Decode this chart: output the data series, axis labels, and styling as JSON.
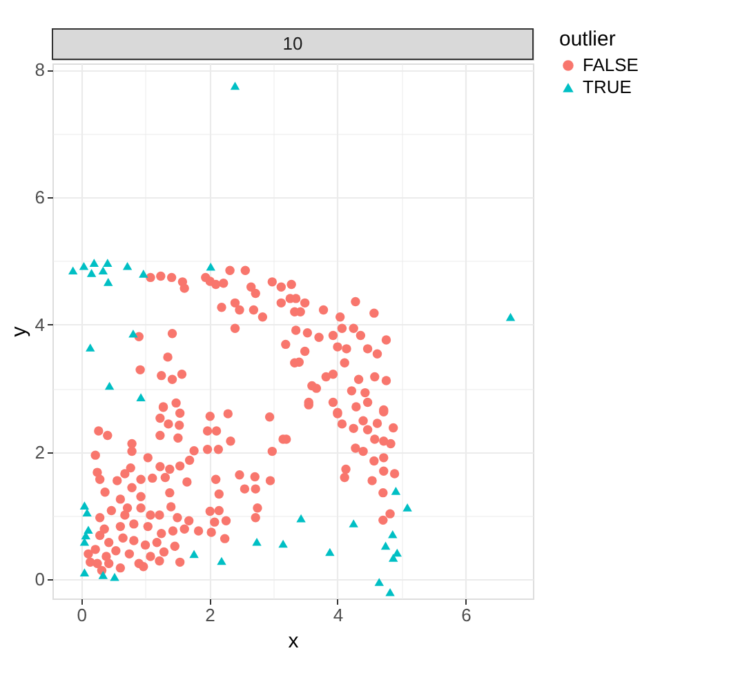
{
  "chart_data": {
    "type": "scatter",
    "title": "10",
    "xlabel": "x",
    "ylabel": "y",
    "legend_title": "outlier",
    "legend": "right",
    "grid": true,
    "xlim": [
      -0.45,
      7.05
    ],
    "ylim": [
      -0.3,
      8.1
    ],
    "xticks": [
      0,
      2,
      4,
      6
    ],
    "yticks": [
      0,
      2,
      4,
      6,
      8
    ],
    "series": [
      {
        "name": "FALSE",
        "color": "#f8766d",
        "marker": "circle",
        "x": [
          1.08,
          1.24,
          1.41,
          1.58,
          1.61,
          1.94,
          2.01,
          2.1,
          2.22,
          2.32,
          2.56,
          2.65,
          2.72,
          2.19,
          2.4,
          2.47,
          2.69,
          2.83,
          2.98,
          3.12,
          3.26,
          3.33,
          3.12,
          2.4,
          3.19,
          3.33,
          0.9,
          1.42,
          1.35,
          0.92,
          1.25,
          1.42,
          1.57,
          1.28,
          1.48,
          3.28,
          3.35,
          3.49,
          3.42,
          3.78,
          4.04,
          4.28,
          4.57,
          3.35,
          3.53,
          3.71,
          3.93,
          4.07,
          4.25,
          4.36,
          4.76,
          4.0,
          4.14,
          4.47,
          4.62,
          3.49,
          3.4,
          4.11,
          3.93,
          3.82,
          4.33,
          4.58,
          4.76,
          3.6,
          3.67,
          4.22,
          4.43,
          4.47,
          3.55,
          3.93,
          4.29,
          4.72,
          4.0,
          3.2,
          3.55,
          4.0,
          4.07,
          4.25,
          4.4,
          4.47,
          4.62,
          4.72,
          4.87,
          4.58,
          4.72,
          4.83,
          4.28,
          4.4,
          4.57,
          4.72,
          4.13,
          4.11,
          4.72,
          4.89,
          4.54,
          4.71,
          4.82,
          4.71,
          1.28,
          1.54,
          1.23,
          1.36,
          1.53,
          2.01,
          2.29,
          2.94,
          1.97,
          2.11,
          1.23,
          1.51,
          2.33,
          3.15,
          0.27,
          0.41,
          0.79,
          0.79,
          0.22,
          1.04,
          1.97,
          2.14,
          2.98,
          1.76,
          1.69,
          1.54,
          1.38,
          1.23,
          0.77,
          0.25,
          0.29,
          0.68,
          0.56,
          0.93,
          1.11,
          1.31,
          1.65,
          2.1,
          2.47,
          2.71,
          2.55,
          2.72,
          2.95,
          2.15,
          0.37,
          0.61,
          0.79,
          0.93,
          1.38,
          0.72,
          0.47,
          0.29,
          0.93,
          1.08,
          0.68,
          1.4,
          2.01,
          2.15,
          2.75,
          2.72,
          1.22,
          1.5,
          1.68,
          1.83,
          2.08,
          2.26,
          2.03,
          2.24,
          0.36,
          0.43,
          0.61,
          0.82,
          1.04,
          1.25,
          1.43,
          1.61,
          0.29,
          0.65,
          0.82,
          1.0,
          1.18,
          1.46,
          0.11,
          0.22,
          0.39,
          0.25,
          0.54,
          0.75,
          0.9,
          1.08,
          1.29,
          1.54,
          0.61,
          0.43,
          0.14,
          0.32,
          0.97,
          1.22
        ],
        "values": [
          4.74,
          4.76,
          4.74,
          4.67,
          4.57,
          4.74,
          4.68,
          4.63,
          4.65,
          4.85,
          4.85,
          4.59,
          4.49,
          4.27,
          4.34,
          4.23,
          4.23,
          4.12,
          4.67,
          4.59,
          4.41,
          4.2,
          4.34,
          3.94,
          3.69,
          3.4,
          3.81,
          3.86,
          3.49,
          3.29,
          3.2,
          3.14,
          3.22,
          2.7,
          2.77,
          4.63,
          4.41,
          4.34,
          4.2,
          4.23,
          4.12,
          4.36,
          4.18,
          3.91,
          3.87,
          3.8,
          3.83,
          3.94,
          3.94,
          3.83,
          3.76,
          3.65,
          3.62,
          3.62,
          3.54,
          3.58,
          3.41,
          3.4,
          3.22,
          3.18,
          3.14,
          3.18,
          3.12,
          3.04,
          3.0,
          2.96,
          2.93,
          2.78,
          2.78,
          2.78,
          2.71,
          2.66,
          2.62,
          2.2,
          2.74,
          2.6,
          2.44,
          2.37,
          2.49,
          2.35,
          2.45,
          2.63,
          2.38,
          2.2,
          2.17,
          2.13,
          2.06,
          2.01,
          1.86,
          1.91,
          1.73,
          1.6,
          1.7,
          1.66,
          1.55,
          1.36,
          1.03,
          0.93,
          2.71,
          2.61,
          2.53,
          2.44,
          2.42,
          2.56,
          2.6,
          2.55,
          2.33,
          2.33,
          2.26,
          2.22,
          2.17,
          2.2,
          2.33,
          2.26,
          2.13,
          2.01,
          1.95,
          1.91,
          2.04,
          2.04,
          2.01,
          2.02,
          1.87,
          1.78,
          1.73,
          1.77,
          1.75,
          1.68,
          1.57,
          1.66,
          1.55,
          1.57,
          1.59,
          1.6,
          1.53,
          1.57,
          1.64,
          1.61,
          1.42,
          1.42,
          1.55,
          1.34,
          1.37,
          1.26,
          1.44,
          1.3,
          1.36,
          1.12,
          1.08,
          0.97,
          1.12,
          1.01,
          1.01,
          1.14,
          1.07,
          1.08,
          1.12,
          0.97,
          1.01,
          0.97,
          0.92,
          0.76,
          0.9,
          0.92,
          0.74,
          0.64,
          0.79,
          0.58,
          0.83,
          0.87,
          0.83,
          0.72,
          0.76,
          0.79,
          0.69,
          0.65,
          0.61,
          0.54,
          0.58,
          0.52,
          0.4,
          0.47,
          0.36,
          0.25,
          0.45,
          0.4,
          0.25,
          0.36,
          0.43,
          0.27,
          0.18,
          0.25,
          0.27,
          0.14,
          0.2,
          0.29
        ]
      },
      {
        "name": "TRUE",
        "color": "#00bfc4",
        "marker": "triangle",
        "x": [
          -0.13,
          0.04,
          0.2,
          0.16,
          0.41,
          0.34,
          0.42,
          0.72,
          0.97,
          2.02,
          0.81,
          0.14,
          0.44,
          0.93,
          6.7,
          2.4,
          0.05,
          0.09,
          0.11,
          0.07,
          0.05,
          0.05,
          0.34,
          0.52,
          1.76,
          2.19,
          2.74,
          3.15,
          3.43,
          3.88,
          4.25,
          4.91,
          5.09,
          4.86,
          4.75,
          4.93,
          4.87,
          4.65,
          4.82
        ],
        "values": [
          4.85,
          4.92,
          4.97,
          4.81,
          4.97,
          4.85,
          4.67,
          4.92,
          4.8,
          4.91,
          3.86,
          3.64,
          3.04,
          2.86,
          4.12,
          7.75,
          1.16,
          1.05,
          0.78,
          0.69,
          0.59,
          0.11,
          0.07,
          0.04,
          0.4,
          0.29,
          0.59,
          0.56,
          0.96,
          0.43,
          0.88,
          1.39,
          1.13,
          0.71,
          0.53,
          0.42,
          0.34,
          -0.04,
          -0.2
        ]
      }
    ]
  }
}
